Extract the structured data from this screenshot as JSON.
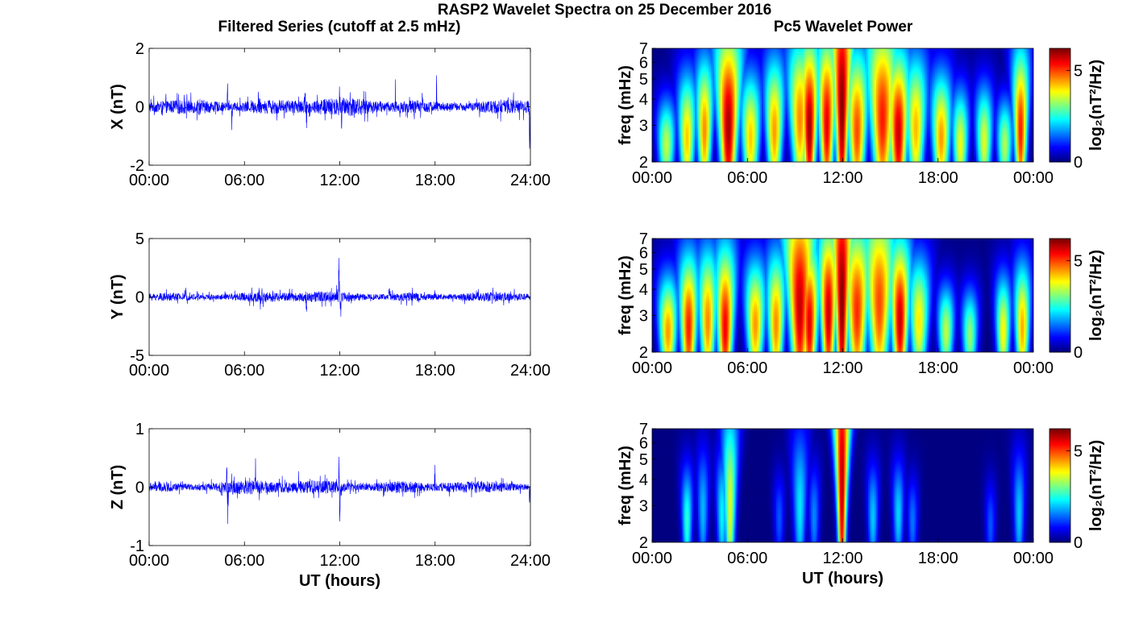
{
  "figure": {
    "title": "RASP2 Wavelet Spectra on 25 December 2016",
    "left_column_title": "Filtered Series (cutoff at 2.5 mHz)",
    "right_column_title": "Pc5 Wavelet Power"
  },
  "chart_data": [
    {
      "type": "line",
      "panel": "time-series-x",
      "title": "",
      "xlabel": "",
      "ylabel": "X (nT)",
      "x_tick_labels": [
        "00:00",
        "06:00",
        "12:00",
        "18:00",
        "24:00"
      ],
      "xlim_hours": [
        0,
        24
      ],
      "ylim": [
        -2,
        2
      ],
      "y_ticks": [
        -2,
        0,
        2
      ],
      "line_color": "#0000ff",
      "series": [
        {
          "noise_amplitude": 0.22,
          "spikes": [
            {
              "t": 4.95,
              "amp": 1.2
            },
            {
              "t": 5.2,
              "amp": -0.95
            },
            {
              "t": 6.9,
              "amp": 1.0
            },
            {
              "t": 9.8,
              "amp": 0.9
            },
            {
              "t": 9.9,
              "amp": -1.1
            },
            {
              "t": 12.0,
              "amp": 0.95
            },
            {
              "t": 12.1,
              "amp": -1.1
            },
            {
              "t": 15.5,
              "amp": 1.45
            },
            {
              "t": 15.8,
              "amp": -0.75
            },
            {
              "t": 17.2,
              "amp": 0.7
            },
            {
              "t": 18.1,
              "amp": 1.5
            },
            {
              "t": 23.4,
              "amp": 0.65
            },
            {
              "t": 23.95,
              "amp": -1.8
            }
          ]
        }
      ]
    },
    {
      "type": "line",
      "panel": "time-series-y",
      "title": "",
      "xlabel": "",
      "ylabel": "Y (nT)",
      "x_tick_labels": [
        "00:00",
        "06:00",
        "12:00",
        "18:00",
        "24:00"
      ],
      "xlim_hours": [
        0,
        24
      ],
      "ylim": [
        -5,
        5
      ],
      "y_ticks": [
        -5,
        0,
        5
      ],
      "line_color": "#0000ff",
      "series": [
        {
          "noise_amplitude": 0.35,
          "spikes": [
            {
              "t": 2.3,
              "amp": 1.1
            },
            {
              "t": 4.8,
              "amp": 1.2
            },
            {
              "t": 6.9,
              "amp": 1.0
            },
            {
              "t": 7.0,
              "amp": -1.8
            },
            {
              "t": 9.9,
              "amp": -1.7
            },
            {
              "t": 11.95,
              "amp": 3.3
            },
            {
              "t": 12.05,
              "amp": -2.6
            },
            {
              "t": 15.1,
              "amp": 1.3
            },
            {
              "t": 18.0,
              "amp": 0.9
            }
          ]
        }
      ]
    },
    {
      "type": "line",
      "panel": "time-series-z",
      "title": "",
      "xlabel": "UT (hours)",
      "ylabel": "Z (nT)",
      "x_tick_labels": [
        "00:00",
        "06:00",
        "12:00",
        "18:00",
        "24:00"
      ],
      "xlim_hours": [
        0,
        24
      ],
      "ylim": [
        -1,
        1
      ],
      "y_ticks": [
        -1,
        0,
        1
      ],
      "line_color": "#0000ff",
      "series": [
        {
          "noise_amplitude": 0.09,
          "spikes": [
            {
              "t": 4.9,
              "amp": 0.5
            },
            {
              "t": 4.95,
              "amp": -0.68
            },
            {
              "t": 6.7,
              "amp": 0.45
            },
            {
              "t": 9.4,
              "amp": 0.4
            },
            {
              "t": 11.95,
              "amp": 0.8
            },
            {
              "t": 12.0,
              "amp": -0.78
            },
            {
              "t": 15.2,
              "amp": 0.35
            },
            {
              "t": 18.0,
              "amp": 0.4
            },
            {
              "t": 23.95,
              "amp": -0.3
            }
          ]
        }
      ]
    },
    {
      "type": "heatmap",
      "panel": "wavelet-x",
      "title": "",
      "xlabel": "",
      "ylabel": "freq (mHz)",
      "x_tick_labels": [
        "00:00",
        "06:00",
        "12:00",
        "18:00",
        "00:00"
      ],
      "xlim_hours": [
        0,
        24
      ],
      "ylim_mhz": [
        2,
        7
      ],
      "y_scale": "log",
      "y_ticks": [
        2,
        3,
        4,
        5,
        6,
        7
      ],
      "colorbar": {
        "label": "log₂(nT²/Hz)",
        "ticks": [
          0,
          5
        ],
        "range": [
          0,
          6.2
        ],
        "colormap": "jet"
      },
      "plumes": [
        {
          "t": 0.9,
          "f": 2.4,
          "p": 3.5,
          "w": 0.5,
          "h": 0.5
        },
        {
          "t": 2.2,
          "f": 2.6,
          "p": 4.2,
          "w": 0.45,
          "h": 0.7
        },
        {
          "t": 3.3,
          "f": 2.8,
          "p": 4.6,
          "w": 0.4,
          "h": 0.8
        },
        {
          "t": 4.8,
          "f": 2.9,
          "p": 6.0,
          "w": 0.5,
          "h": 1.1
        },
        {
          "t": 6.2,
          "f": 2.6,
          "p": 4.2,
          "w": 0.5,
          "h": 0.7
        },
        {
          "t": 7.7,
          "f": 2.8,
          "p": 4.5,
          "w": 0.45,
          "h": 0.8
        },
        {
          "t": 9.3,
          "f": 3.2,
          "p": 4.6,
          "w": 0.5,
          "h": 0.9
        },
        {
          "t": 9.9,
          "f": 2.9,
          "p": 6.0,
          "w": 0.4,
          "h": 1.0
        },
        {
          "t": 11.0,
          "f": 3.0,
          "p": 5.6,
          "w": 0.4,
          "h": 1.0
        },
        {
          "t": 11.95,
          "f": 3.6,
          "p": 6.2,
          "w": 0.35,
          "h": 1.6
        },
        {
          "t": 12.9,
          "f": 2.8,
          "p": 5.0,
          "w": 0.5,
          "h": 0.9
        },
        {
          "t": 14.5,
          "f": 3.2,
          "p": 5.3,
          "w": 0.6,
          "h": 1.1
        },
        {
          "t": 15.5,
          "f": 2.7,
          "p": 5.8,
          "w": 0.5,
          "h": 0.9
        },
        {
          "t": 16.6,
          "f": 2.9,
          "p": 4.3,
          "w": 0.5,
          "h": 0.8
        },
        {
          "t": 18.2,
          "f": 2.6,
          "p": 4.5,
          "w": 0.5,
          "h": 0.7
        },
        {
          "t": 19.4,
          "f": 2.4,
          "p": 3.8,
          "w": 0.45,
          "h": 0.6
        },
        {
          "t": 20.9,
          "f": 2.5,
          "p": 3.7,
          "w": 0.45,
          "h": 0.6
        },
        {
          "t": 22.2,
          "f": 2.4,
          "p": 3.4,
          "w": 0.45,
          "h": 0.5
        },
        {
          "t": 23.2,
          "f": 2.8,
          "p": 5.3,
          "w": 0.35,
          "h": 0.9
        }
      ]
    },
    {
      "type": "heatmap",
      "panel": "wavelet-y",
      "title": "",
      "xlabel": "",
      "ylabel": "freq (mHz)",
      "x_tick_labels": [
        "00:00",
        "06:00",
        "12:00",
        "18:00",
        "00:00"
      ],
      "xlim_hours": [
        0,
        24
      ],
      "ylim_mhz": [
        2,
        7
      ],
      "y_scale": "log",
      "y_ticks": [
        2,
        3,
        4,
        5,
        6,
        7
      ],
      "colorbar": {
        "label": "log₂(nT²/Hz)",
        "ticks": [
          0,
          5
        ],
        "range": [
          0,
          6.2
        ],
        "colormap": "jet"
      },
      "plumes": [
        {
          "t": 1.0,
          "f": 2.5,
          "p": 4.5,
          "w": 0.5,
          "h": 0.6
        },
        {
          "t": 2.3,
          "f": 2.6,
          "p": 5.3,
          "w": 0.45,
          "h": 0.8
        },
        {
          "t": 3.5,
          "f": 2.8,
          "p": 4.6,
          "w": 0.45,
          "h": 0.8
        },
        {
          "t": 4.6,
          "f": 2.6,
          "p": 5.5,
          "w": 0.45,
          "h": 0.9
        },
        {
          "t": 6.5,
          "f": 2.7,
          "p": 4.5,
          "w": 0.5,
          "h": 0.7
        },
        {
          "t": 7.8,
          "f": 2.7,
          "p": 4.6,
          "w": 0.45,
          "h": 0.8
        },
        {
          "t": 9.3,
          "f": 3.3,
          "p": 5.8,
          "w": 0.55,
          "h": 1.3
        },
        {
          "t": 9.9,
          "f": 2.7,
          "p": 5.6,
          "w": 0.45,
          "h": 0.9
        },
        {
          "t": 11.1,
          "f": 3.0,
          "p": 5.8,
          "w": 0.4,
          "h": 1.0
        },
        {
          "t": 11.95,
          "f": 3.5,
          "p": 6.2,
          "w": 0.35,
          "h": 1.7
        },
        {
          "t": 12.9,
          "f": 3.1,
          "p": 5.2,
          "w": 0.55,
          "h": 1.0
        },
        {
          "t": 14.3,
          "f": 3.4,
          "p": 5.0,
          "w": 0.6,
          "h": 1.1
        },
        {
          "t": 15.6,
          "f": 2.8,
          "p": 5.8,
          "w": 0.45,
          "h": 0.9
        },
        {
          "t": 16.8,
          "f": 2.8,
          "p": 4.0,
          "w": 0.5,
          "h": 0.7
        },
        {
          "t": 18.5,
          "f": 2.5,
          "p": 3.5,
          "w": 0.45,
          "h": 0.5
        },
        {
          "t": 20.0,
          "f": 2.4,
          "p": 3.2,
          "w": 0.45,
          "h": 0.5
        },
        {
          "t": 22.1,
          "f": 2.5,
          "p": 3.9,
          "w": 0.4,
          "h": 0.6
        },
        {
          "t": 23.3,
          "f": 2.6,
          "p": 4.4,
          "w": 0.4,
          "h": 0.7
        }
      ]
    },
    {
      "type": "heatmap",
      "panel": "wavelet-z",
      "title": "",
      "xlabel": "UT (hours)",
      "ylabel": "freq (mHz)",
      "x_tick_labels": [
        "00:00",
        "06:00",
        "12:00",
        "18:00",
        "00:00"
      ],
      "xlim_hours": [
        0,
        24
      ],
      "ylim_mhz": [
        2,
        7
      ],
      "y_scale": "log",
      "y_ticks": [
        2,
        3,
        4,
        5,
        6,
        7
      ],
      "colorbar": {
        "label": "log₂(nT²/Hz)",
        "ticks": [
          0,
          5
        ],
        "range": [
          0,
          6.2
        ],
        "colormap": "jet"
      },
      "plumes": [
        {
          "t": 2.2,
          "f": 2.5,
          "p": 2.6,
          "w": 0.3,
          "h": 0.6
        },
        {
          "t": 3.2,
          "f": 2.8,
          "p": 1.9,
          "w": 0.3,
          "h": 0.7
        },
        {
          "t": 4.4,
          "f": 2.7,
          "p": 2.3,
          "w": 0.3,
          "h": 0.7
        },
        {
          "t": 4.9,
          "f": 2.9,
          "p": 3.7,
          "w": 0.3,
          "h": 1.1
        },
        {
          "t": 8.0,
          "f": 2.6,
          "p": 1.3,
          "w": 0.3,
          "h": 0.5
        },
        {
          "t": 9.3,
          "f": 2.9,
          "p": 2.2,
          "w": 0.35,
          "h": 0.9
        },
        {
          "t": 10.2,
          "f": 2.6,
          "p": 1.6,
          "w": 0.3,
          "h": 0.6
        },
        {
          "t": 11.95,
          "f": 3.8,
          "p": 5.9,
          "w": 0.25,
          "h": 1.9
        },
        {
          "t": 13.9,
          "f": 2.6,
          "p": 2.0,
          "w": 0.3,
          "h": 0.6
        },
        {
          "t": 15.5,
          "f": 2.7,
          "p": 2.1,
          "w": 0.3,
          "h": 0.6
        },
        {
          "t": 16.4,
          "f": 2.5,
          "p": 1.5,
          "w": 0.3,
          "h": 0.5
        },
        {
          "t": 21.3,
          "f": 2.4,
          "p": 1.3,
          "w": 0.3,
          "h": 0.5
        },
        {
          "t": 23.1,
          "f": 2.7,
          "p": 2.0,
          "w": 0.3,
          "h": 0.7
        }
      ]
    }
  ]
}
